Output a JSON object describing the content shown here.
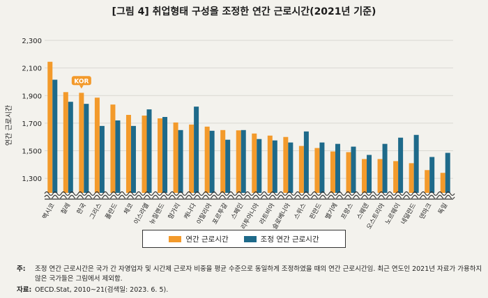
{
  "title": "[그림 4] 취업형태 구성을 조정한 연간 근로시간(2021년 기준)",
  "colors": {
    "series1": "#f39a2b",
    "series2": "#1e6a8a",
    "kor": "#f39a2b"
  },
  "chart_data": {
    "type": "bar",
    "ylabel": "연간 근로시간",
    "yticks": [
      "1,300",
      "1,500",
      "1,700",
      "1,900",
      "2,100",
      "2,300"
    ],
    "ylim": [
      1200,
      2300
    ],
    "axis_break": true,
    "categories": [
      "멕시코",
      "칠레",
      "한국",
      "그리스",
      "폴란드",
      "체코",
      "이스라엘",
      "뉴질랜드",
      "헝가리",
      "캐나다",
      "이탈리아",
      "포르투갈",
      "스페인",
      "리투아니아",
      "라트비아",
      "슬로베니아",
      "스위스",
      "핀란드",
      "벨기에",
      "프랑스",
      "스웨덴",
      "오스트리아",
      "노르웨이",
      "네덜란드",
      "덴마크",
      "독일"
    ],
    "series": [
      {
        "name": "연간 근로시간",
        "values": [
          2145,
          1925,
          1920,
          1885,
          1835,
          1760,
          1755,
          1735,
          1705,
          1690,
          1675,
          1650,
          1648,
          1625,
          1610,
          1600,
          1535,
          1520,
          1495,
          1490,
          1440,
          1440,
          1425,
          1410,
          1360,
          1340
        ]
      },
      {
        "name": "조정 연간 근로시간",
        "values": [
          2015,
          1855,
          1840,
          1680,
          1720,
          1680,
          1800,
          1745,
          1650,
          1820,
          1645,
          1580,
          1650,
          1585,
          1575,
          1560,
          1640,
          1560,
          1550,
          1530,
          1470,
          1550,
          1595,
          1615,
          1455,
          1485
        ]
      }
    ],
    "annotation": {
      "category": "한국",
      "text": "KOR"
    },
    "legend_position": "bottom"
  },
  "footnote": {
    "note_label": "주:",
    "note_text": "조정 연간 근로시간은 국가 간 자영업자 및 시간제 근로자 비중을 평균 수준으로 동일하게 조정하였을 때의 연간 근로시간임. 최근 연도인 2021년 자료가 가용하지 않은 국가들은 그림에서 제외함.",
    "source_label": "자료:",
    "source_text": "OECD.Stat, 2010~21(검색일: 2023. 6. 5)."
  }
}
